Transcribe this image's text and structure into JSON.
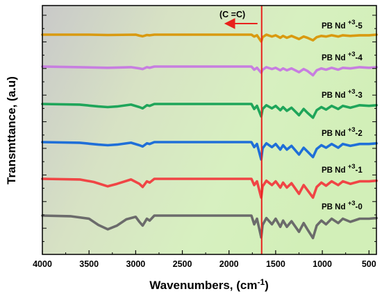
{
  "chart_data": {
    "type": "line",
    "xlabel": "Wavenumbers, (cm",
    "xlabel_sup": "-1",
    "xlabel_tail": ")",
    "ylabel": "Transmttance, (a.u)",
    "x_reversed": true,
    "xlim": [
      4000,
      420
    ],
    "x_ticks": [
      4000,
      3500,
      3000,
      2500,
      2000,
      1500,
      1000,
      500
    ],
    "x_tick_labels": [
      "4000",
      "3500",
      "3000",
      "2500",
      "2000",
      "1500",
      "1000",
      "500"
    ],
    "y_ticks_labeled": false,
    "background": "gray-to-light-green gradient",
    "marker_line": {
      "x": 1650,
      "color": "#e8211c"
    },
    "annotation": {
      "text": "(C =C)",
      "arrow_direction": "left"
    },
    "series": [
      {
        "name": "PB Nd +3-5",
        "label_main": "PB Nd ",
        "label_sup": "+3",
        "label_tail": "-5",
        "color": "#d99a10",
        "baseline": 50,
        "points": [
          [
            4000,
            0
          ],
          [
            3500,
            0
          ],
          [
            3300,
            0.5
          ],
          [
            3000,
            0
          ],
          [
            2960,
            1.5
          ],
          [
            2925,
            2.5
          ],
          [
            2880,
            0.5
          ],
          [
            2850,
            1
          ],
          [
            2800,
            0
          ],
          [
            2000,
            0
          ],
          [
            1760,
            0
          ],
          [
            1730,
            3
          ],
          [
            1700,
            1
          ],
          [
            1655,
            11
          ],
          [
            1640,
            4
          ],
          [
            1600,
            0
          ],
          [
            1540,
            3
          ],
          [
            1500,
            1
          ],
          [
            1450,
            5
          ],
          [
            1420,
            2
          ],
          [
            1380,
            5
          ],
          [
            1330,
            2
          ],
          [
            1250,
            7
          ],
          [
            1200,
            3
          ],
          [
            1160,
            5
          ],
          [
            1100,
            9
          ],
          [
            1060,
            4
          ],
          [
            1010,
            2
          ],
          [
            960,
            3
          ],
          [
            900,
            1
          ],
          [
            830,
            3
          ],
          [
            780,
            1
          ],
          [
            700,
            2
          ],
          [
            600,
            1
          ],
          [
            500,
            1
          ],
          [
            420,
            0
          ]
        ]
      },
      {
        "name": "PB Nd +3-4",
        "label_main": "PB Nd ",
        "label_sup": "+3",
        "label_tail": "-4",
        "color": "#c77ee0",
        "baseline": 96,
        "points": [
          [
            4000,
            0
          ],
          [
            3600,
            1
          ],
          [
            3300,
            2
          ],
          [
            3050,
            1
          ],
          [
            2960,
            3
          ],
          [
            2925,
            4
          ],
          [
            2880,
            1
          ],
          [
            2850,
            2
          ],
          [
            2800,
            0
          ],
          [
            2000,
            0
          ],
          [
            1760,
            0
          ],
          [
            1730,
            5
          ],
          [
            1700,
            2
          ],
          [
            1655,
            10
          ],
          [
            1640,
            5
          ],
          [
            1600,
            1
          ],
          [
            1540,
            4
          ],
          [
            1500,
            2
          ],
          [
            1450,
            6
          ],
          [
            1420,
            3
          ],
          [
            1380,
            6
          ],
          [
            1330,
            3
          ],
          [
            1250,
            9
          ],
          [
            1200,
            4
          ],
          [
            1160,
            7
          ],
          [
            1100,
            14
          ],
          [
            1060,
            6
          ],
          [
            1010,
            3
          ],
          [
            960,
            5
          ],
          [
            900,
            2
          ],
          [
            830,
            5
          ],
          [
            780,
            2
          ],
          [
            700,
            3
          ],
          [
            600,
            1
          ],
          [
            500,
            2
          ],
          [
            420,
            1
          ]
        ]
      },
      {
        "name": "PB Nd +3-3",
        "label_main": "PB Nd ",
        "label_sup": "+3",
        "label_tail": "-3",
        "color": "#1fa55a",
        "baseline": 150,
        "points": [
          [
            4000,
            0
          ],
          [
            3600,
            1
          ],
          [
            3400,
            4
          ],
          [
            3300,
            5
          ],
          [
            3200,
            4
          ],
          [
            3050,
            1
          ],
          [
            2960,
            5
          ],
          [
            2925,
            7
          ],
          [
            2880,
            2
          ],
          [
            2850,
            3
          ],
          [
            2800,
            0
          ],
          [
            2000,
            0
          ],
          [
            1760,
            0
          ],
          [
            1730,
            8
          ],
          [
            1700,
            3
          ],
          [
            1655,
            20
          ],
          [
            1640,
            8
          ],
          [
            1600,
            2
          ],
          [
            1540,
            7
          ],
          [
            1500,
            3
          ],
          [
            1450,
            10
          ],
          [
            1420,
            5
          ],
          [
            1380,
            11
          ],
          [
            1330,
            6
          ],
          [
            1250,
            18
          ],
          [
            1200,
            8
          ],
          [
            1160,
            14
          ],
          [
            1100,
            22
          ],
          [
            1060,
            10
          ],
          [
            1010,
            5
          ],
          [
            960,
            9
          ],
          [
            900,
            3
          ],
          [
            830,
            8
          ],
          [
            780,
            3
          ],
          [
            700,
            6
          ],
          [
            600,
            2
          ],
          [
            500,
            3
          ],
          [
            420,
            2
          ]
        ]
      },
      {
        "name": "PB Nd +3-2",
        "label_main": "PB Nd ",
        "label_sup": "+3",
        "label_tail": "-2",
        "color": "#1f6fd8",
        "baseline": 205,
        "points": [
          [
            4000,
            0
          ],
          [
            3600,
            1
          ],
          [
            3400,
            4
          ],
          [
            3300,
            5
          ],
          [
            3200,
            4
          ],
          [
            3050,
            1
          ],
          [
            2960,
            5
          ],
          [
            2925,
            7
          ],
          [
            2880,
            2
          ],
          [
            2850,
            3
          ],
          [
            2800,
            0
          ],
          [
            2000,
            0
          ],
          [
            1760,
            0
          ],
          [
            1730,
            8
          ],
          [
            1700,
            3
          ],
          [
            1655,
            28
          ],
          [
            1640,
            10
          ],
          [
            1600,
            2
          ],
          [
            1540,
            8
          ],
          [
            1500,
            3
          ],
          [
            1450,
            12
          ],
          [
            1420,
            5
          ],
          [
            1380,
            12
          ],
          [
            1330,
            6
          ],
          [
            1250,
            20
          ],
          [
            1200,
            9
          ],
          [
            1160,
            15
          ],
          [
            1100,
            24
          ],
          [
            1060,
            11
          ],
          [
            1010,
            5
          ],
          [
            960,
            9
          ],
          [
            900,
            3
          ],
          [
            830,
            9
          ],
          [
            780,
            3
          ],
          [
            700,
            6
          ],
          [
            600,
            3
          ],
          [
            500,
            3
          ],
          [
            420,
            2
          ]
        ]
      },
      {
        "name": "PB Nd +3-1",
        "label_main": "PB Nd ",
        "label_sup": "+3",
        "label_tail": "-1",
        "color": "#f04545",
        "baseline": 258,
        "points": [
          [
            4000,
            0
          ],
          [
            3600,
            1
          ],
          [
            3450,
            5
          ],
          [
            3300,
            12
          ],
          [
            3200,
            8
          ],
          [
            3050,
            1
          ],
          [
            2960,
            8
          ],
          [
            2925,
            13
          ],
          [
            2880,
            4
          ],
          [
            2850,
            6
          ],
          [
            2800,
            0
          ],
          [
            2000,
            0
          ],
          [
            1760,
            0
          ],
          [
            1730,
            10
          ],
          [
            1700,
            4
          ],
          [
            1655,
            30
          ],
          [
            1640,
            12
          ],
          [
            1600,
            3
          ],
          [
            1540,
            10
          ],
          [
            1500,
            4
          ],
          [
            1450,
            14
          ],
          [
            1420,
            6
          ],
          [
            1380,
            14
          ],
          [
            1330,
            7
          ],
          [
            1250,
            24
          ],
          [
            1200,
            10
          ],
          [
            1160,
            18
          ],
          [
            1100,
            30
          ],
          [
            1060,
            13
          ],
          [
            1010,
            6
          ],
          [
            960,
            11
          ],
          [
            900,
            4
          ],
          [
            830,
            10
          ],
          [
            780,
            4
          ],
          [
            700,
            8
          ],
          [
            600,
            4
          ],
          [
            500,
            4
          ],
          [
            420,
            3
          ]
        ]
      },
      {
        "name": "PB Nd +3-0",
        "label_main": "PB Nd ",
        "label_sup": "+3",
        "label_tail": "-0",
        "color": "#6b6b6b",
        "baseline": 311,
        "points": [
          [
            4000,
            0
          ],
          [
            3700,
            1
          ],
          [
            3500,
            5
          ],
          [
            3400,
            15
          ],
          [
            3300,
            22
          ],
          [
            3200,
            16
          ],
          [
            3100,
            6
          ],
          [
            3000,
            2
          ],
          [
            2960,
            10
          ],
          [
            2925,
            16
          ],
          [
            2880,
            5
          ],
          [
            2850,
            8
          ],
          [
            2800,
            0
          ],
          [
            2000,
            0
          ],
          [
            1760,
            0
          ],
          [
            1730,
            14
          ],
          [
            1700,
            5
          ],
          [
            1655,
            35
          ],
          [
            1640,
            15
          ],
          [
            1600,
            4
          ],
          [
            1540,
            14
          ],
          [
            1500,
            5
          ],
          [
            1450,
            18
          ],
          [
            1420,
            8
          ],
          [
            1380,
            18
          ],
          [
            1330,
            9
          ],
          [
            1250,
            26
          ],
          [
            1200,
            12
          ],
          [
            1160,
            22
          ],
          [
            1100,
            36
          ],
          [
            1060,
            16
          ],
          [
            1010,
            8
          ],
          [
            960,
            14
          ],
          [
            900,
            5
          ],
          [
            830,
            12
          ],
          [
            780,
            5
          ],
          [
            700,
            10
          ],
          [
            600,
            5
          ],
          [
            500,
            5
          ],
          [
            420,
            4
          ]
        ]
      }
    ]
  }
}
